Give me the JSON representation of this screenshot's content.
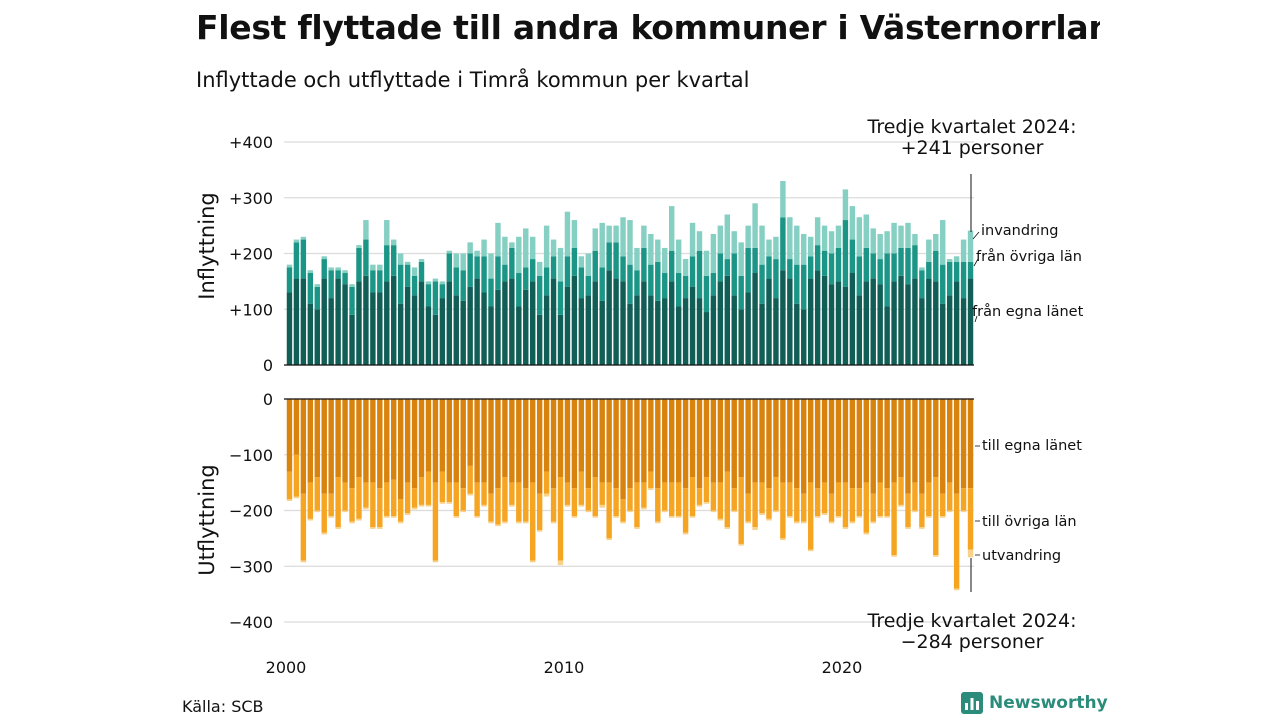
{
  "title": "Flest flyttade till andra kommuner i Västernorrland",
  "subtitle": "Inflyttade och utflyttade i Timrå kommun per kvartal",
  "source": "Källa: SCB",
  "brand": "Newsworthy",
  "colors": {
    "in_own": "#115e56",
    "in_other": "#1b9686",
    "in_abroad": "#86cfc3",
    "out_own": "#d9830f",
    "out_other": "#f6a523",
    "out_abroad": "#f8d18a",
    "brand": "#2c8c7c"
  },
  "chart_data": [
    {
      "type": "bar",
      "stacked": true,
      "ylabel": "Inflyttning",
      "ylim": [
        0,
        400
      ],
      "yticks": [
        0,
        100,
        200,
        300,
        400
      ],
      "ytick_labels": [
        "0",
        "+100",
        "+200",
        "+300",
        "+400"
      ],
      "grid": true,
      "x_start": "2000 Q1",
      "x_end": "2024 Q3",
      "series": [
        {
          "name": "från egna länet",
          "values": [
            130,
            155,
            155,
            110,
            100,
            155,
            120,
            155,
            145,
            90,
            150,
            160,
            130,
            130,
            150,
            160,
            110,
            140,
            125,
            150,
            105,
            90,
            120,
            150,
            125,
            115,
            140,
            155,
            130,
            105,
            135,
            150,
            155,
            105,
            135,
            150,
            90,
            125,
            155,
            90,
            140,
            160,
            120,
            125,
            150,
            115,
            170,
            155,
            150,
            110,
            125,
            150,
            125,
            115,
            120,
            150,
            105,
            120,
            140,
            120,
            95,
            125,
            150,
            160,
            125,
            100,
            130,
            165,
            110,
            155,
            120,
            170,
            155,
            110,
            100,
            155,
            170,
            160,
            145,
            150,
            140,
            165,
            125,
            150,
            155,
            145,
            105,
            150,
            160,
            145,
            155,
            120,
            155,
            150,
            110,
            125,
            150,
            120,
            155
          ]
        },
        {
          "name": "från övriga län",
          "values": [
            45,
            65,
            70,
            55,
            40,
            35,
            50,
            15,
            20,
            50,
            60,
            65,
            40,
            40,
            65,
            55,
            70,
            40,
            35,
            35,
            40,
            60,
            25,
            50,
            50,
            55,
            60,
            40,
            65,
            50,
            60,
            30,
            55,
            60,
            40,
            40,
            70,
            50,
            40,
            60,
            55,
            50,
            55,
            35,
            55,
            60,
            50,
            65,
            45,
            70,
            45,
            60,
            55,
            70,
            45,
            55,
            60,
            40,
            55,
            85,
            65,
            40,
            50,
            30,
            75,
            60,
            80,
            45,
            70,
            40,
            70,
            95,
            35,
            70,
            80,
            40,
            45,
            45,
            55,
            60,
            120,
            60,
            70,
            60,
            45,
            45,
            95,
            50,
            50,
            65,
            60,
            50,
            30,
            55,
            70,
            60,
            35,
            65,
            30
          ]
        },
        {
          "name": "invandring",
          "values": [
            5,
            5,
            5,
            5,
            5,
            5,
            5,
            5,
            5,
            5,
            5,
            35,
            10,
            10,
            45,
            10,
            20,
            5,
            15,
            5,
            5,
            5,
            5,
            5,
            25,
            30,
            20,
            10,
            30,
            45,
            60,
            50,
            10,
            65,
            70,
            40,
            25,
            75,
            30,
            60,
            80,
            50,
            20,
            40,
            40,
            80,
            30,
            30,
            70,
            80,
            40,
            40,
            55,
            40,
            45,
            80,
            60,
            30,
            60,
            35,
            45,
            70,
            50,
            80,
            40,
            60,
            40,
            80,
            70,
            30,
            40,
            65,
            75,
            70,
            55,
            35,
            50,
            45,
            40,
            40,
            55,
            60,
            70,
            60,
            45,
            45,
            40,
            55,
            40,
            45,
            20,
            5,
            40,
            30,
            80,
            5,
            10,
            40,
            56
          ]
        }
      ]
    },
    {
      "type": "bar",
      "stacked": true,
      "ylabel": "Utflyttning",
      "ylim": [
        -400,
        0
      ],
      "yticks": [
        0,
        -100,
        -200,
        -300,
        -400
      ],
      "ytick_labels": [
        "0",
        "−100",
        "−200",
        "−300",
        "−400"
      ],
      "grid": true,
      "x_start": "2000 Q1",
      "x_end": "2024 Q3",
      "series": [
        {
          "name": "till egna länet",
          "values": [
            -130,
            -100,
            -170,
            -150,
            -140,
            -170,
            -170,
            -140,
            -150,
            -160,
            -140,
            -150,
            -150,
            -160,
            -150,
            -145,
            -180,
            -150,
            -160,
            -140,
            -130,
            -150,
            -130,
            -150,
            -150,
            -160,
            -120,
            -150,
            -150,
            -170,
            -160,
            -140,
            -150,
            -150,
            -160,
            -150,
            -170,
            -130,
            -160,
            -140,
            -150,
            -160,
            -130,
            -160,
            -140,
            -150,
            -150,
            -160,
            -180,
            -160,
            -150,
            -150,
            -130,
            -160,
            -150,
            -150,
            -150,
            -160,
            -140,
            -160,
            -140,
            -150,
            -150,
            -130,
            -160,
            -140,
            -170,
            -150,
            -150,
            -160,
            -140,
            -150,
            -150,
            -160,
            -170,
            -150,
            -160,
            -150,
            -170,
            -150,
            -150,
            -160,
            -160,
            -150,
            -170,
            -150,
            -160,
            -150,
            -140,
            -170,
            -150,
            -170,
            -150,
            -140,
            -170,
            -150,
            -170,
            -160,
            -160
          ]
        },
        {
          "name": "till övriga län",
          "values": [
            -50,
            -75,
            -120,
            -65,
            -60,
            -70,
            -40,
            -90,
            -50,
            -60,
            -75,
            -45,
            -80,
            -70,
            -60,
            -65,
            -40,
            -55,
            -35,
            -50,
            -60,
            -140,
            -55,
            -35,
            -60,
            -40,
            -50,
            -60,
            -40,
            -50,
            -65,
            -80,
            -40,
            -70,
            -60,
            -140,
            -65,
            -40,
            -60,
            -150,
            -40,
            -50,
            -60,
            -40,
            -70,
            -40,
            -100,
            -50,
            -40,
            -40,
            -80,
            -45,
            -30,
            -60,
            -50,
            -60,
            -60,
            -80,
            -70,
            -30,
            -45,
            -50,
            -65,
            -100,
            -40,
            -120,
            -50,
            -80,
            -55,
            -55,
            -60,
            -100,
            -60,
            -60,
            -50,
            -120,
            -50,
            -55,
            -50,
            -60,
            -80,
            -60,
            -50,
            -90,
            -50,
            -60,
            -50,
            -130,
            -50,
            -60,
            -50,
            -60,
            -60,
            -140,
            -40,
            -50,
            -170,
            -40,
            -110
          ]
        },
        {
          "name": "utvandring",
          "values": [
            -3,
            -3,
            -3,
            -3,
            -3,
            -3,
            -3,
            -3,
            -3,
            -3,
            -3,
            -3,
            -3,
            -3,
            -3,
            -3,
            -3,
            -3,
            -3,
            -3,
            -3,
            -3,
            -3,
            -3,
            -3,
            -3,
            -3,
            -3,
            -3,
            -3,
            -3,
            -3,
            -3,
            -3,
            -3,
            -3,
            -3,
            -5,
            -3,
            -8,
            -3,
            -3,
            -3,
            -3,
            -3,
            -5,
            -3,
            -3,
            -3,
            -3,
            -3,
            -3,
            -3,
            -3,
            -3,
            -3,
            -3,
            -3,
            -3,
            -3,
            -3,
            -3,
            -3,
            -3,
            -3,
            -3,
            -3,
            -5,
            -3,
            -3,
            -3,
            -3,
            -3,
            -3,
            -3,
            -3,
            -3,
            -3,
            -3,
            -3,
            -3,
            -3,
            -3,
            -3,
            -3,
            -3,
            -3,
            -3,
            -3,
            -3,
            -3,
            -3,
            -3,
            -3,
            -3,
            -3,
            -3,
            -3,
            -14
          ]
        }
      ]
    }
  ],
  "x_axis": {
    "ticks": [
      "2000",
      "2010",
      "2020"
    ]
  },
  "annotations": {
    "top_line1": "Tredje kvartalet 2024:",
    "top_line2": "+241 personer",
    "bottom_line1": "Tredje kvartalet 2024:",
    "bottom_line2": "−284 personer"
  }
}
